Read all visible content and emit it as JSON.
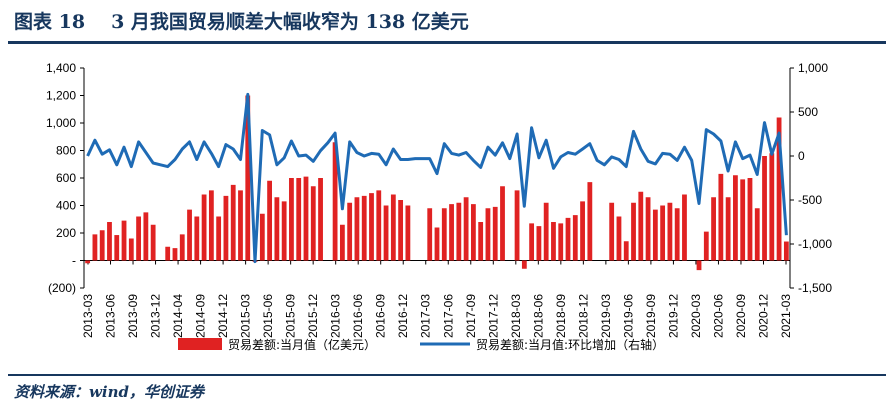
{
  "header": {
    "figure_no": "图表 18",
    "title": "3 月我国贸易顺差大幅收窄为 138 亿美元"
  },
  "source": "资料来源：wind，华创证券",
  "colors": {
    "bar": "#e02222",
    "line": "#1f6bb5",
    "title": "#17375e"
  },
  "chart_data": {
    "type": "bar",
    "title": "3 月我国贸易顺差大幅收窄为 138 亿美元",
    "x_ticks": [
      "2013-03",
      "2013-06",
      "2013-09",
      "2013-12",
      "2014-04",
      "2014-09",
      "2014-12",
      "2015-03",
      "2015-06",
      "2015-09",
      "2015-12",
      "2016-03",
      "2016-06",
      "2016-09",
      "2016-12",
      "2017-03",
      "2017-06",
      "2017-09",
      "2017-12",
      "2018-03",
      "2018-06",
      "2018-09",
      "2018-12",
      "2019-03",
      "2019-06",
      "2019-09",
      "2019-12",
      "2020-03",
      "2020-06",
      "2020-09",
      "2020-12",
      "2021-03"
    ],
    "y_left": {
      "ticks": [
        "(200)",
        "-",
        "200",
        "400",
        "600",
        "800",
        "1,000",
        "1,200",
        "1,400"
      ],
      "range": [
        -200,
        1400
      ]
    },
    "y_right": {
      "ticks": [
        "-1,500",
        "-1,000",
        "-500",
        "0",
        "500",
        "1,000"
      ],
      "range": [
        -1500,
        1000
      ]
    },
    "grid": false,
    "legend_position": "bottom",
    "series": [
      {
        "name": "贸易差额:当月值（亿美元）",
        "type": "bar",
        "axis": "left",
        "values": [
          -20,
          190,
          220,
          280,
          185,
          290,
          160,
          320,
          350,
          260,
          0,
          100,
          90,
          190,
          370,
          320,
          480,
          510,
          320,
          470,
          550,
          510,
          1200,
          -10,
          340,
          580,
          460,
          430,
          600,
          600,
          610,
          540,
          600,
          0,
          860,
          260,
          420,
          460,
          470,
          490,
          510,
          400,
          480,
          440,
          400,
          0,
          0,
          380,
          240,
          380,
          410,
          420,
          460,
          410,
          280,
          380,
          390,
          540,
          0,
          510,
          -60,
          270,
          250,
          420,
          280,
          270,
          310,
          330,
          430,
          570,
          0,
          0,
          420,
          320,
          140,
          420,
          500,
          460,
          370,
          400,
          420,
          380,
          480,
          0,
          -70,
          210,
          460,
          630,
          460,
          620,
          590,
          600,
          380,
          760,
          780,
          1040,
          138
        ]
      },
      {
        "name": "贸易差额:当月值:环比增加（右轴）",
        "type": "line",
        "axis": "right",
        "values": [
          0,
          180,
          20,
          70,
          -100,
          100,
          -120,
          160,
          40,
          -80,
          -100,
          -120,
          -40,
          80,
          160,
          -40,
          160,
          30,
          -120,
          130,
          80,
          -40,
          700,
          -1200,
          290,
          240,
          -100,
          -20,
          170,
          0,
          10,
          -60,
          60,
          150,
          260,
          -600,
          160,
          40,
          0,
          30,
          20,
          -100,
          80,
          -40,
          -40,
          -30,
          -30,
          -30,
          -200,
          140,
          30,
          10,
          40,
          -50,
          -130,
          100,
          10,
          150,
          -30,
          250,
          -570,
          320,
          -20,
          180,
          -140,
          -10,
          40,
          20,
          80,
          140,
          -50,
          -100,
          -10,
          -40,
          -120,
          280,
          80,
          -60,
          -90,
          30,
          20,
          -50,
          100,
          -50,
          -540,
          300,
          250,
          170,
          -170,
          160,
          -30,
          10,
          -210,
          380,
          20,
          260,
          -900
        ]
      }
    ]
  }
}
